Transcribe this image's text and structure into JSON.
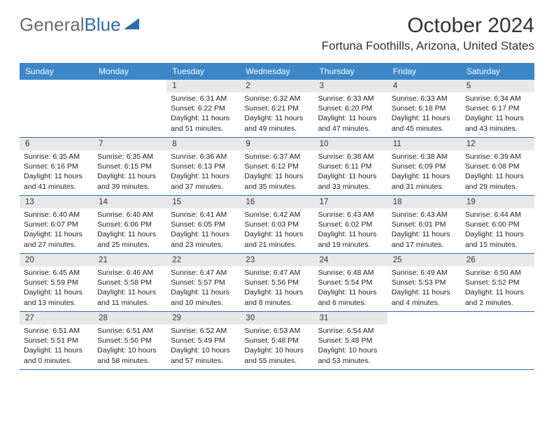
{
  "logo": {
    "text1": "General",
    "text2": "Blue"
  },
  "title": "October 2024",
  "location": "Fortuna Foothills, Arizona, United States",
  "colors": {
    "header_bg": "#3c87c7",
    "header_text": "#ffffff",
    "rule": "#2f6da8",
    "daynum_bg": "#e8e8e8",
    "text": "#333333",
    "logo_gray": "#6b6b6b",
    "logo_blue": "#2f6da8"
  },
  "weekdays": [
    "Sunday",
    "Monday",
    "Tuesday",
    "Wednesday",
    "Thursday",
    "Friday",
    "Saturday"
  ],
  "weeks": [
    [
      null,
      null,
      {
        "n": "1",
        "sr": "6:31 AM",
        "ss": "6:22 PM",
        "dl": "11 hours and 51 minutes."
      },
      {
        "n": "2",
        "sr": "6:32 AM",
        "ss": "6:21 PM",
        "dl": "11 hours and 49 minutes."
      },
      {
        "n": "3",
        "sr": "6:33 AM",
        "ss": "6:20 PM",
        "dl": "11 hours and 47 minutes."
      },
      {
        "n": "4",
        "sr": "6:33 AM",
        "ss": "6:18 PM",
        "dl": "11 hours and 45 minutes."
      },
      {
        "n": "5",
        "sr": "6:34 AM",
        "ss": "6:17 PM",
        "dl": "11 hours and 43 minutes."
      }
    ],
    [
      {
        "n": "6",
        "sr": "6:35 AM",
        "ss": "6:16 PM",
        "dl": "11 hours and 41 minutes."
      },
      {
        "n": "7",
        "sr": "6:35 AM",
        "ss": "6:15 PM",
        "dl": "11 hours and 39 minutes."
      },
      {
        "n": "8",
        "sr": "6:36 AM",
        "ss": "6:13 PM",
        "dl": "11 hours and 37 minutes."
      },
      {
        "n": "9",
        "sr": "6:37 AM",
        "ss": "6:12 PM",
        "dl": "11 hours and 35 minutes."
      },
      {
        "n": "10",
        "sr": "6:38 AM",
        "ss": "6:11 PM",
        "dl": "11 hours and 33 minutes."
      },
      {
        "n": "11",
        "sr": "6:38 AM",
        "ss": "6:09 PM",
        "dl": "11 hours and 31 minutes."
      },
      {
        "n": "12",
        "sr": "6:39 AM",
        "ss": "6:08 PM",
        "dl": "11 hours and 29 minutes."
      }
    ],
    [
      {
        "n": "13",
        "sr": "6:40 AM",
        "ss": "6:07 PM",
        "dl": "11 hours and 27 minutes."
      },
      {
        "n": "14",
        "sr": "6:40 AM",
        "ss": "6:06 PM",
        "dl": "11 hours and 25 minutes."
      },
      {
        "n": "15",
        "sr": "6:41 AM",
        "ss": "6:05 PM",
        "dl": "11 hours and 23 minutes."
      },
      {
        "n": "16",
        "sr": "6:42 AM",
        "ss": "6:03 PM",
        "dl": "11 hours and 21 minutes."
      },
      {
        "n": "17",
        "sr": "6:43 AM",
        "ss": "6:02 PM",
        "dl": "11 hours and 19 minutes."
      },
      {
        "n": "18",
        "sr": "6:43 AM",
        "ss": "6:01 PM",
        "dl": "11 hours and 17 minutes."
      },
      {
        "n": "19",
        "sr": "6:44 AM",
        "ss": "6:00 PM",
        "dl": "11 hours and 15 minutes."
      }
    ],
    [
      {
        "n": "20",
        "sr": "6:45 AM",
        "ss": "5:59 PM",
        "dl": "11 hours and 13 minutes."
      },
      {
        "n": "21",
        "sr": "6:46 AM",
        "ss": "5:58 PM",
        "dl": "11 hours and 11 minutes."
      },
      {
        "n": "22",
        "sr": "6:47 AM",
        "ss": "5:57 PM",
        "dl": "11 hours and 10 minutes."
      },
      {
        "n": "23",
        "sr": "6:47 AM",
        "ss": "5:56 PM",
        "dl": "11 hours and 8 minutes."
      },
      {
        "n": "24",
        "sr": "6:48 AM",
        "ss": "5:54 PM",
        "dl": "11 hours and 6 minutes."
      },
      {
        "n": "25",
        "sr": "6:49 AM",
        "ss": "5:53 PM",
        "dl": "11 hours and 4 minutes."
      },
      {
        "n": "26",
        "sr": "6:50 AM",
        "ss": "5:52 PM",
        "dl": "11 hours and 2 minutes."
      }
    ],
    [
      {
        "n": "27",
        "sr": "6:51 AM",
        "ss": "5:51 PM",
        "dl": "11 hours and 0 minutes."
      },
      {
        "n": "28",
        "sr": "6:51 AM",
        "ss": "5:50 PM",
        "dl": "10 hours and 58 minutes."
      },
      {
        "n": "29",
        "sr": "6:52 AM",
        "ss": "5:49 PM",
        "dl": "10 hours and 57 minutes."
      },
      {
        "n": "30",
        "sr": "6:53 AM",
        "ss": "5:48 PM",
        "dl": "10 hours and 55 minutes."
      },
      {
        "n": "31",
        "sr": "6:54 AM",
        "ss": "5:48 PM",
        "dl": "10 hours and 53 minutes."
      },
      null,
      null
    ]
  ],
  "labels": {
    "sunrise": "Sunrise:",
    "sunset": "Sunset:",
    "daylight": "Daylight:"
  }
}
